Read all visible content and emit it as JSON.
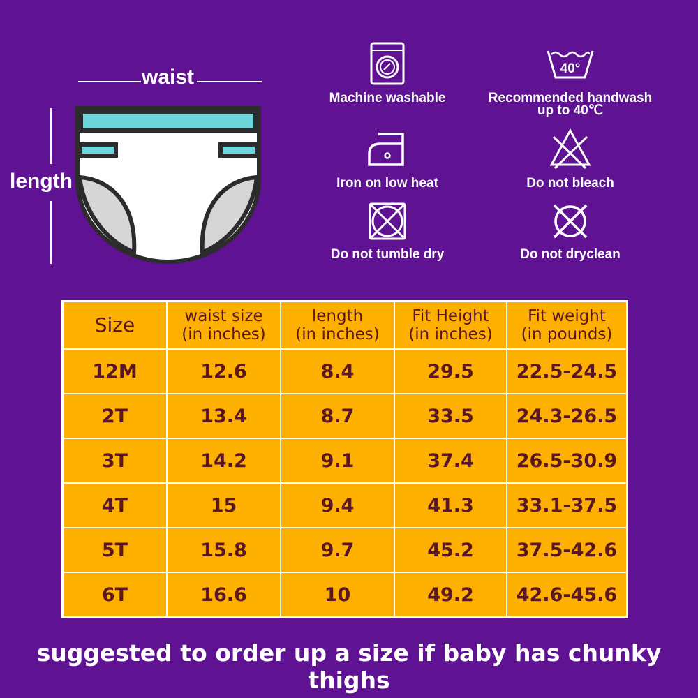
{
  "diagram": {
    "waist_label": "waist",
    "length_label": "length"
  },
  "colors": {
    "background": "#5f1393",
    "table_fill": "#fdb000",
    "table_text": "#5b1720",
    "diaper_band": "#6dd5dc",
    "diaper_outline": "#2c2c2c",
    "diaper_leg": "#d6d6d6"
  },
  "care": [
    {
      "icon": "washing-machine-icon",
      "label": "Machine washable"
    },
    {
      "icon": "handwash-40-icon",
      "icon_text": "40°",
      "label": "Recommended handwash",
      "label2": "up to 40℃"
    },
    {
      "icon": "iron-low-heat-icon",
      "label": "Iron on low heat"
    },
    {
      "icon": "no-bleach-icon",
      "label": "Do not bleach"
    },
    {
      "icon": "no-tumble-dry-icon",
      "label": "Do not tumble dry"
    },
    {
      "icon": "no-dryclean-icon",
      "label": "Do not dryclean"
    }
  ],
  "table": {
    "headers": [
      {
        "line1": "Size",
        "line2": ""
      },
      {
        "line1": "waist size",
        "line2": "(in inches)"
      },
      {
        "line1": "length",
        "line2": "(in inches)"
      },
      {
        "line1": "Fit Height",
        "line2": "(in inches)"
      },
      {
        "line1": "Fit weight",
        "line2": "(in pounds)"
      }
    ],
    "rows": [
      [
        "12M",
        "12.6",
        "8.4",
        "29.5",
        "22.5-24.5"
      ],
      [
        "2T",
        "13.4",
        "8.7",
        "33.5",
        "24.3-26.5"
      ],
      [
        "3T",
        "14.2",
        "9.1",
        "37.4",
        "26.5-30.9"
      ],
      [
        "4T",
        "15",
        "9.4",
        "41.3",
        "33.1-37.5"
      ],
      [
        "5T",
        "15.8",
        "9.7",
        "45.2",
        "37.5-42.6"
      ],
      [
        "6T",
        "16.6",
        "10",
        "49.2",
        "42.6-45.6"
      ]
    ]
  },
  "footer": "suggested to order up a size if baby has chunky thighs"
}
